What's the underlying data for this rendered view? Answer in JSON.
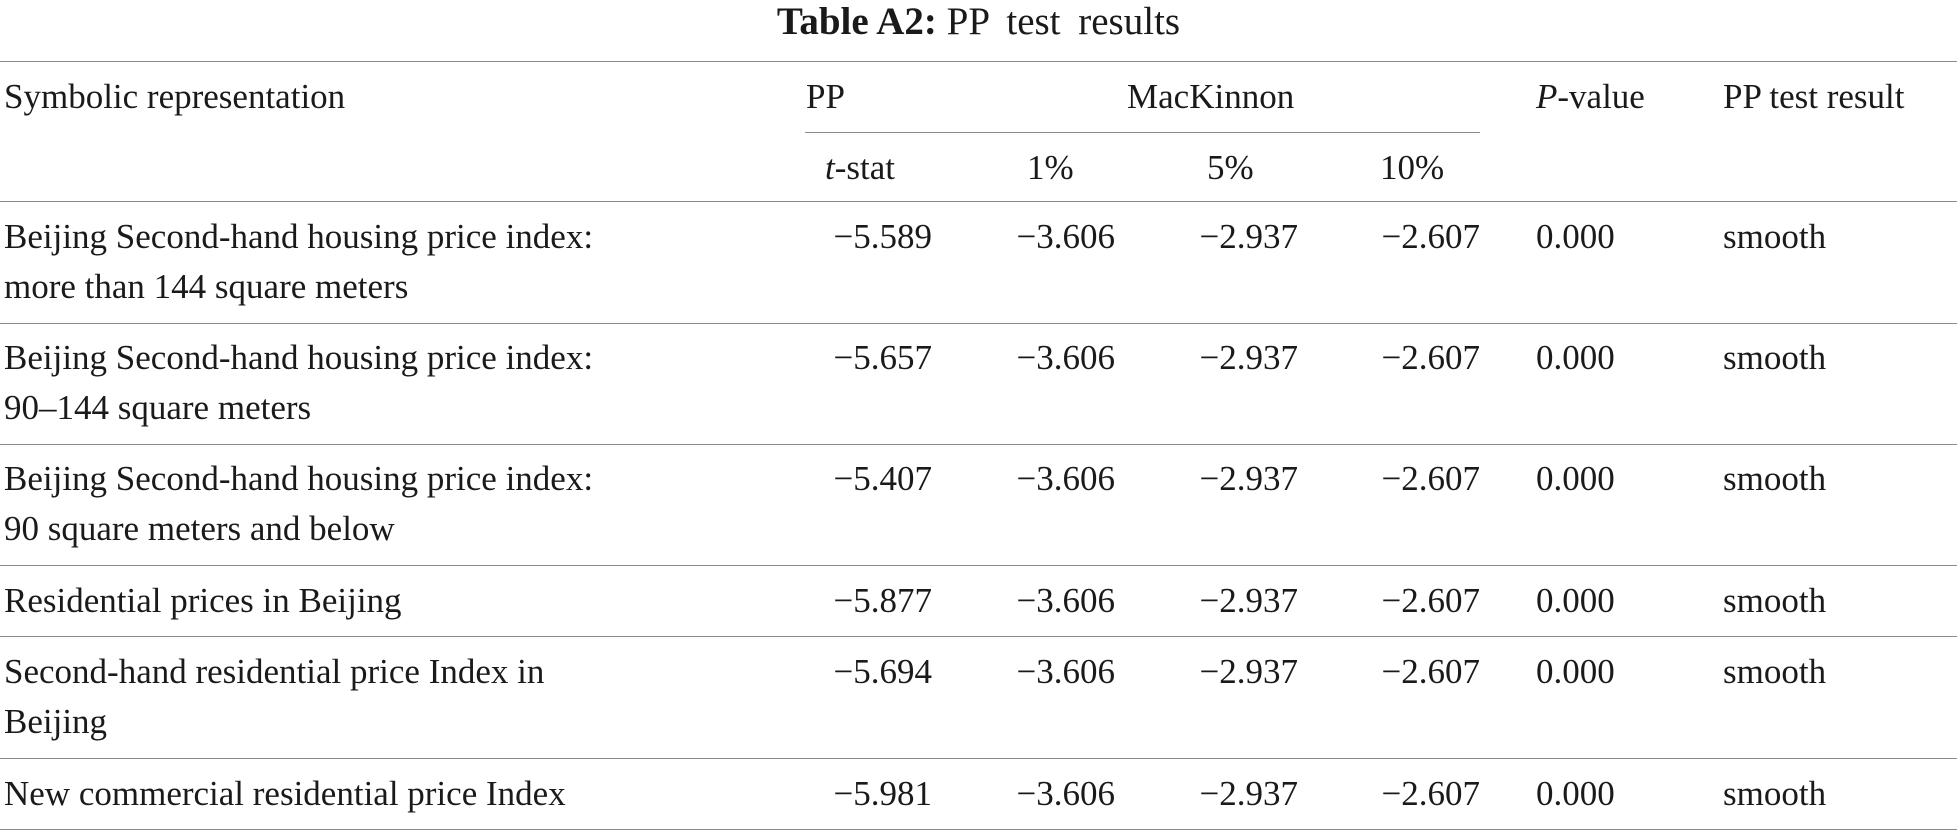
{
  "caption": {
    "label": "Table A2:",
    "title": "PP test results"
  },
  "header": {
    "col_symbolic": "Symbolic representation",
    "col_pp": "PP",
    "col_mackinnon": "MacKinnon",
    "col_pvalue_italic": "P",
    "col_pvalue_rest": "-value",
    "col_result": "PP test result",
    "sub_tstat_italic": "t",
    "sub_tstat_rest": "-stat",
    "sub_1": "1%",
    "sub_5": "5%",
    "sub_10": "10%"
  },
  "rows": [
    {
      "label_line1": "Beijing Second-hand housing price index:",
      "label_line2": "more than 144 square meters",
      "tstat": "−5.589",
      "cv1": "−3.606",
      "cv5": "−2.937",
      "cv10": "−2.607",
      "pvalue": "0.000",
      "result": "smooth"
    },
    {
      "label_line1": "Beijing Second-hand housing price index:",
      "label_line2": "90–144 square meters",
      "tstat": "−5.657",
      "cv1": "−3.606",
      "cv5": "−2.937",
      "cv10": "−2.607",
      "pvalue": "0.000",
      "result": "smooth"
    },
    {
      "label_line1": "Beijing Second-hand housing price index:",
      "label_line2": "90 square meters and below",
      "tstat": "−5.407",
      "cv1": "−3.606",
      "cv5": "−2.937",
      "cv10": "−2.607",
      "pvalue": "0.000",
      "result": "smooth"
    },
    {
      "label_line1": "Residential prices in Beijing",
      "label_line2": "",
      "tstat": "−5.877",
      "cv1": "−3.606",
      "cv5": "−2.937",
      "cv10": "−2.607",
      "pvalue": "0.000",
      "result": "smooth"
    },
    {
      "label_line1": "Second-hand residential price Index in",
      "label_line2": "Beijing",
      "tstat": "−5.694",
      "cv1": "−3.606",
      "cv5": "−2.937",
      "cv10": "−2.607",
      "pvalue": "0.000",
      "result": "smooth"
    },
    {
      "label_line1": "New commercial residential price Index",
      "label_line2": "",
      "tstat": "−5.981",
      "cv1": "−3.606",
      "cv5": "−2.937",
      "cv10": "−2.607",
      "pvalue": "0.000",
      "result": "smooth"
    }
  ]
}
